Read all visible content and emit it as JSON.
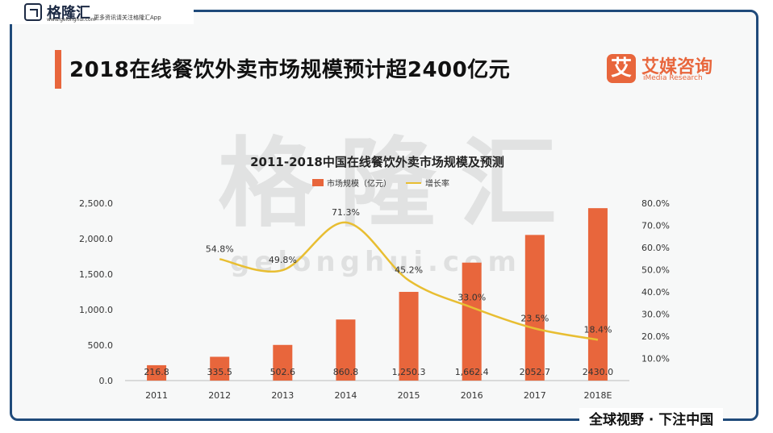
{
  "brand": {
    "name": "格隆汇",
    "url": "www.gelonghui.com",
    "tagline": "更多资讯请关注格隆汇App"
  },
  "header": {
    "title": "2018在线餐饮外卖市场规模预计超2400亿元"
  },
  "source_logo": {
    "icon_char": "艾",
    "name": "艾媒咨询",
    "subtitle": "iMedia Research"
  },
  "watermark": {
    "text": "格隆汇",
    "url_text": "gelonghui.com"
  },
  "footer": {
    "slogan": "全球视野 · 下注中国"
  },
  "colors": {
    "bar": "#e8663c",
    "line": "#e8be32",
    "accent": "#e8663c",
    "frame": "#1f4a7a"
  },
  "chart_data": {
    "type": "bar",
    "title": "2011-2018中国在线餐饮外卖市场规模及预测",
    "categories": [
      "2011",
      "2012",
      "2013",
      "2014",
      "2015",
      "2016",
      "2017",
      "2018E"
    ],
    "series": [
      {
        "name": "市场规模（亿元）",
        "type": "bar",
        "axis": "left",
        "values": [
          216.8,
          335.5,
          502.6,
          860.8,
          1250.3,
          1662.4,
          2052.7,
          2430.0
        ],
        "labels": [
          "216.8",
          "335.5",
          "502.6",
          "860.8",
          "1,250.3",
          "1,662.4",
          "2052.7",
          "2430.0"
        ]
      },
      {
        "name": "增长率",
        "type": "line",
        "axis": "right",
        "values": [
          null,
          54.8,
          49.8,
          71.3,
          45.2,
          33.0,
          23.5,
          18.4
        ],
        "labels": [
          "",
          "54.8%",
          "49.8%",
          "71.3%",
          "45.2%",
          "33.0%",
          "23.5%",
          "18.4%"
        ]
      }
    ],
    "ylim": [
      0,
      2500
    ],
    "yticks": [
      "0.0",
      "500.0",
      "1,000.0",
      "1,500.0",
      "2,000.0",
      "2,500.0"
    ],
    "y2lim": [
      0,
      80
    ],
    "y2ticks": [
      "10.0%",
      "20.0%",
      "30.0%",
      "40.0%",
      "50.0%",
      "60.0%",
      "70.0%",
      "80.0%"
    ],
    "legend_position": "top-center",
    "grid": false
  }
}
